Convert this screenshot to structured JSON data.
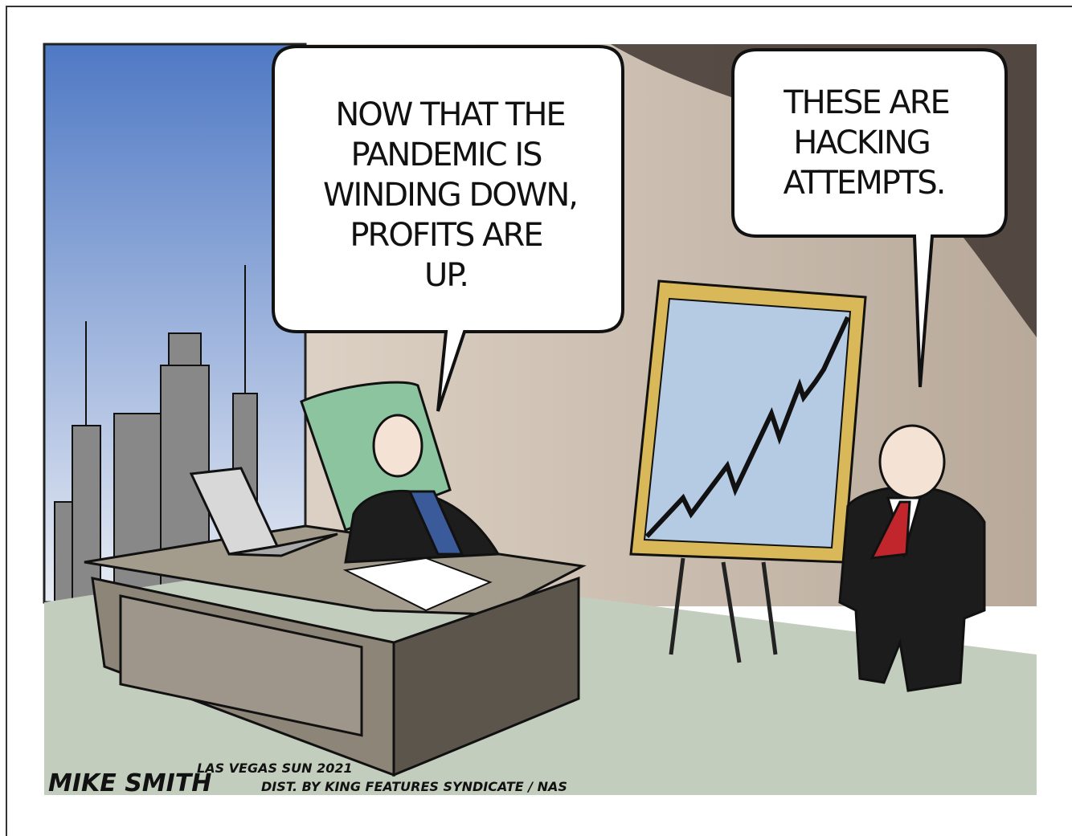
{
  "bubbles": [
    {
      "lines": [
        "NOW THAT THE",
        "PANDEMIC IS",
        "WINDING DOWN,",
        "PROFITS ARE",
        "UP."
      ]
    },
    {
      "lines": [
        "THESE ARE",
        "HACKING",
        "ATTEMPTS."
      ]
    }
  ],
  "signature": "MIKE SMITH",
  "credit": [
    "LAS VEGAS SUN 2021",
    "DIST. BY KING FEATURES SYNDICATE / NAS"
  ]
}
